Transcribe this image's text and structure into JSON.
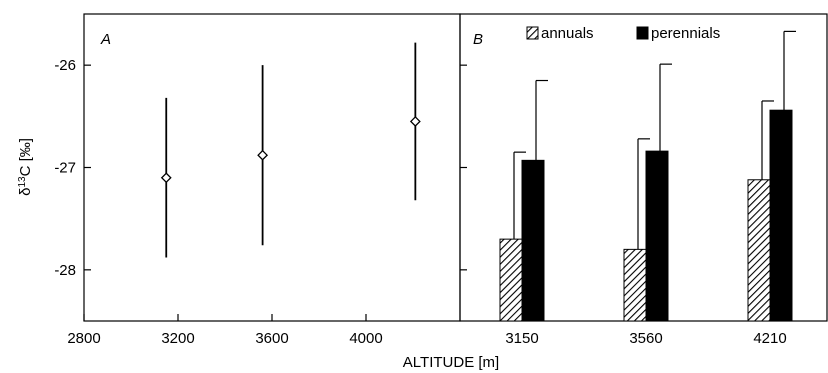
{
  "chart_data": [
    {
      "type": "scatter",
      "panel_label": "A",
      "xlabel": "ALTITUDE [m]",
      "ylabel_prefix": "δ",
      "ylabel_sup": "13",
      "ylabel_suffix": "C [‰]",
      "xlim": [
        2800,
        4400
      ],
      "ylim": [
        -28.5,
        -25.5
      ],
      "xticks": [
        2800,
        3200,
        3600,
        4000
      ],
      "xtick_labels": [
        "2800",
        "3200",
        "3600",
        "4000"
      ],
      "yticks": [
        -26,
        -27,
        -28
      ],
      "ytick_labels": [
        "-26",
        "-27",
        "-28"
      ],
      "marker": "diamond-open",
      "points": [
        {
          "x": 3150,
          "y": -27.1,
          "err": 0.78
        },
        {
          "x": 3560,
          "y": -26.88,
          "err": 0.88
        },
        {
          "x": 4210,
          "y": -26.55,
          "err": 0.77
        }
      ]
    },
    {
      "type": "bar",
      "panel_label": "B",
      "categories": [
        "3150",
        "3560",
        "4210"
      ],
      "ylim": [
        -28.5,
        -25.5
      ],
      "series": [
        {
          "name": "annuals",
          "pattern": "hatched",
          "values": [
            -27.7,
            -27.8,
            -27.12
          ],
          "err": [
            0.85,
            1.08,
            0.77
          ]
        },
        {
          "name": "perennials",
          "pattern": "solid",
          "color": "#000000",
          "values": [
            -26.93,
            -26.84,
            -26.44
          ],
          "err": [
            0.78,
            0.85,
            0.77
          ]
        }
      ],
      "legend": "top"
    }
  ]
}
